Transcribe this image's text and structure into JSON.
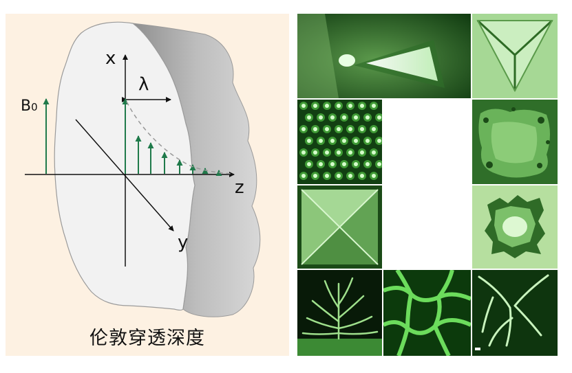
{
  "diagram": {
    "labels": {
      "b0": "B",
      "b0_sub": "0",
      "x_axis": "x",
      "y_axis": "y",
      "z_axis": "z",
      "lambda": "λ"
    },
    "caption": "伦敦穿透深度"
  },
  "figure_grid": {
    "tiles": [
      {
        "name": "tile-flux-wedge"
      },
      {
        "name": "tile-triangle-pattern"
      },
      {
        "name": "tile-vortex-lattice"
      },
      {
        "name": "tile-rough-flux-front"
      },
      {
        "name": "tile-square-pyramid"
      },
      {
        "name": "tile-irregular-flux-domain"
      },
      {
        "name": "tile-dendritic-avalanche"
      },
      {
        "name": "tile-flux-network"
      },
      {
        "name": "tile-flux-branches"
      }
    ]
  },
  "colors": {
    "panel_background": "#fdf1e2",
    "field_arrow": "#1f7a4a",
    "tile_dark": "#0f3d0f",
    "tile_bright": "#a8f0a0"
  }
}
